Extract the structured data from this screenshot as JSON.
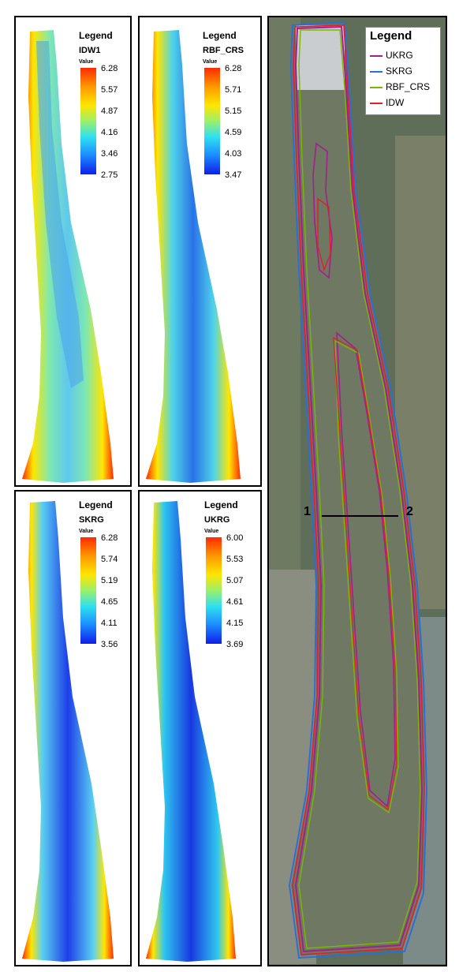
{
  "panels": [
    {
      "legend_title": "Legend",
      "layer_name": "IDW1",
      "value_label": "Value",
      "ticks": [
        "6.28",
        "5.57",
        "4.87",
        "4.16",
        "3.46",
        "2.75"
      ]
    },
    {
      "legend_title": "Legend",
      "layer_name": "RBF_CRS",
      "value_label": "Value",
      "ticks": [
        "6.28",
        "5.71",
        "5.15",
        "4.59",
        "4.03",
        "3.47"
      ]
    },
    {
      "legend_title": "Legend",
      "layer_name": "SKRG",
      "value_label": "Value",
      "ticks": [
        "6.28",
        "5.74",
        "5.19",
        "4.65",
        "4.11",
        "3.56"
      ]
    },
    {
      "legend_title": "Legend",
      "layer_name": "UKRG",
      "value_label": "Value",
      "ticks": [
        "6.00",
        "5.53",
        "5.07",
        "4.61",
        "4.15",
        "3.69"
      ]
    }
  ],
  "overlay": {
    "legend_title": "Legend",
    "entries": [
      {
        "label": "UKRG",
        "color": "#a0208c"
      },
      {
        "label": "SKRG",
        "color": "#2a6fd6"
      },
      {
        "label": "RBF_CRS",
        "color": "#7ab800"
      },
      {
        "label": "IDW",
        "color": "#e0202a"
      }
    ],
    "section_start": "1",
    "section_end": "2"
  },
  "colors": {
    "ramp_high": "#ff2a00",
    "ramp_mid": "#ffe600",
    "ramp_low": "#0f1ee8",
    "imagery": "#5b6a57",
    "water": "#6f7863"
  }
}
